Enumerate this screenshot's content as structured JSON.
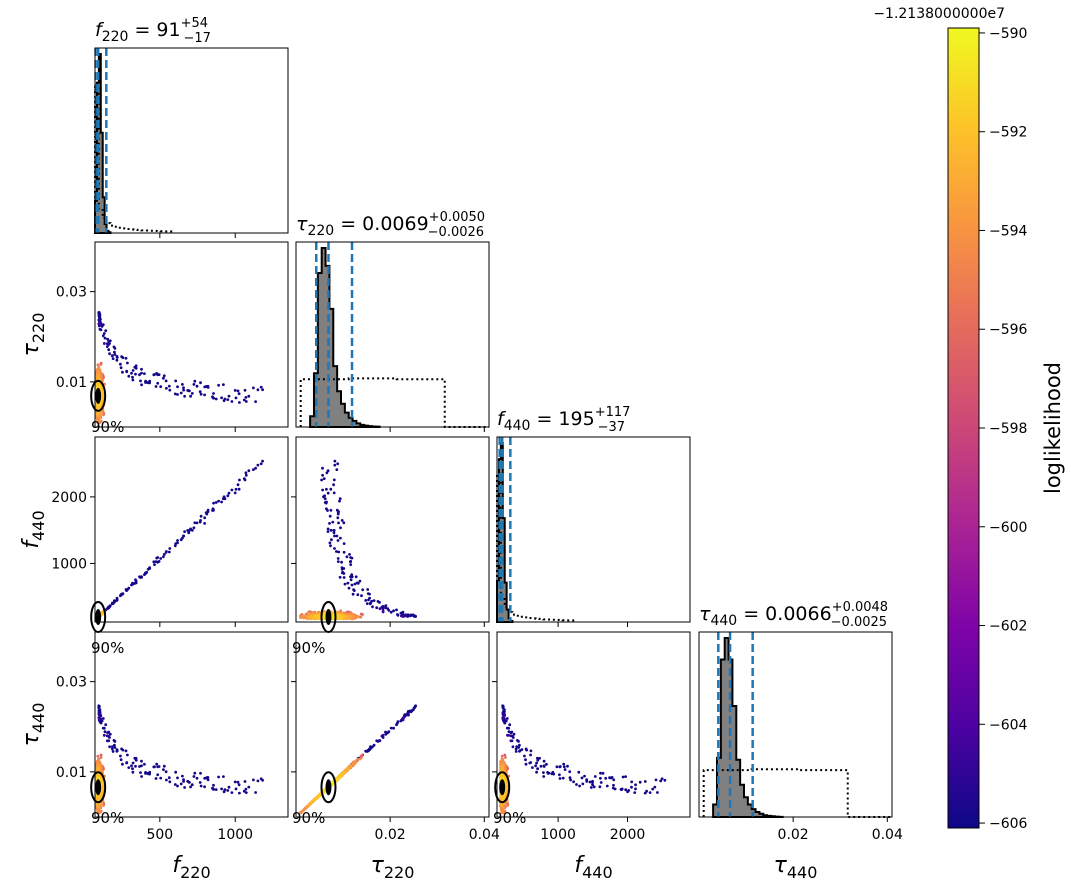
{
  "chart_data": {
    "type": "corner",
    "parameters": [
      {
        "key": "f220",
        "sym": "f",
        "sub": "220",
        "range": [
          70,
          1350
        ],
        "ticks": [
          500,
          1000
        ],
        "tick_labels": [
          "500",
          "1000"
        ]
      },
      {
        "key": "tau220",
        "sym": "τ",
        "sub": "220",
        "range": [
          0.0,
          0.041
        ],
        "ticks": [
          0.02,
          0.04
        ],
        "tick_labels": [
          "0.02",
          "0.04"
        ],
        "y_ticks": [
          0.01,
          0.03
        ],
        "y_tick_labels": [
          "0.01",
          "0.03"
        ]
      },
      {
        "key": "f440",
        "sym": "f",
        "sub": "440",
        "range": [
          120,
          2900
        ],
        "ticks": [
          1000,
          2000
        ],
        "tick_labels": [
          "1000",
          "2000"
        ],
        "y_tick_labels": [
          "1000",
          "2000"
        ]
      },
      {
        "key": "tau440",
        "sym": "τ",
        "sub": "440",
        "range": [
          0.0,
          0.041
        ],
        "ticks": [
          0.02,
          0.04
        ],
        "tick_labels": [
          "0.02",
          "0.04"
        ],
        "y_ticks": [
          0.01,
          0.03
        ],
        "y_tick_labels": [
          "0.01",
          "0.03"
        ]
      }
    ],
    "titles": [
      {
        "sym": "f",
        "sub": "220",
        "eq": " = 91",
        "plus": "+54",
        "minus": "−17"
      },
      {
        "sym": "τ",
        "sub": "220",
        "eq": " = 0.0069",
        "plus": "+0.0050",
        "minus": "−0.0026"
      },
      {
        "sym": "f",
        "sub": "440",
        "eq": " = 195",
        "plus": "+117",
        "minus": "−37"
      },
      {
        "sym": "τ",
        "sub": "440",
        "eq": " = 0.0066",
        "plus": "+0.0048",
        "minus": "−0.0025"
      }
    ],
    "quantiles": [
      [
        74,
        91,
        145
      ],
      [
        0.0043,
        0.0069,
        0.0119
      ],
      [
        158,
        195,
        312
      ],
      [
        0.0041,
        0.0066,
        0.0114
      ]
    ],
    "histograms": [
      {
        "start": 70,
        "width": 12.8,
        "counts": [
          180,
          840,
          1000,
          560,
          200,
          50,
          12,
          4
        ]
      },
      {
        "start": 0.003,
        "width": 0.00082,
        "counts": [
          60,
          300,
          860,
          1000,
          900,
          660,
          340,
          200,
          130,
          80,
          52,
          34,
          20,
          12,
          8,
          5,
          3,
          2
        ]
      },
      {
        "start": 120,
        "width": 27.8,
        "counts": [
          230,
          910,
          1000,
          580,
          220,
          70,
          20,
          6
        ]
      },
      {
        "start": 0.003,
        "width": 0.00082,
        "counts": [
          70,
          330,
          880,
          1000,
          880,
          620,
          320,
          180,
          110,
          70,
          44,
          28,
          18,
          10,
          6,
          4,
          2,
          1
        ]
      }
    ],
    "prior_histograms": [
      {
        "start": 70,
        "width": 25.6,
        "counts": [
          900,
          140,
          90,
          60,
          45,
          38,
          32,
          28,
          24,
          22,
          20,
          18,
          16,
          15,
          14,
          13,
          12,
          11,
          10,
          10
        ]
      },
      {
        "start": 0.001,
        "width": 0.0102,
        "counts": [
          290,
          295,
          290,
          0
        ]
      },
      {
        "start": 120,
        "width": 55.6,
        "counts": [
          900,
          140,
          90,
          60,
          45,
          38,
          32,
          28,
          24,
          22,
          20,
          18,
          16,
          15,
          14,
          13,
          12,
          11,
          10,
          10
        ]
      },
      {
        "start": 0.001,
        "width": 0.0102,
        "counts": [
          285,
          290,
          285,
          0
        ]
      }
    ],
    "colorbar": {
      "label": "loglikelihood",
      "offset_text": "−1.2138000000e7",
      "range": [
        -606.1,
        -589.9
      ],
      "ticks": [
        -590,
        -592,
        -594,
        -596,
        -598,
        -600,
        -602,
        -604,
        -606
      ],
      "tick_labels": [
        "−590",
        "−592",
        "−594",
        "−596",
        "−598",
        "−600",
        "−602",
        "−604",
        "−606"
      ],
      "colormap": "plasma"
    },
    "contour_label": "90%",
    "colors": {
      "quantile_line": "#1f77b4",
      "hist_fill": "#808080"
    }
  }
}
